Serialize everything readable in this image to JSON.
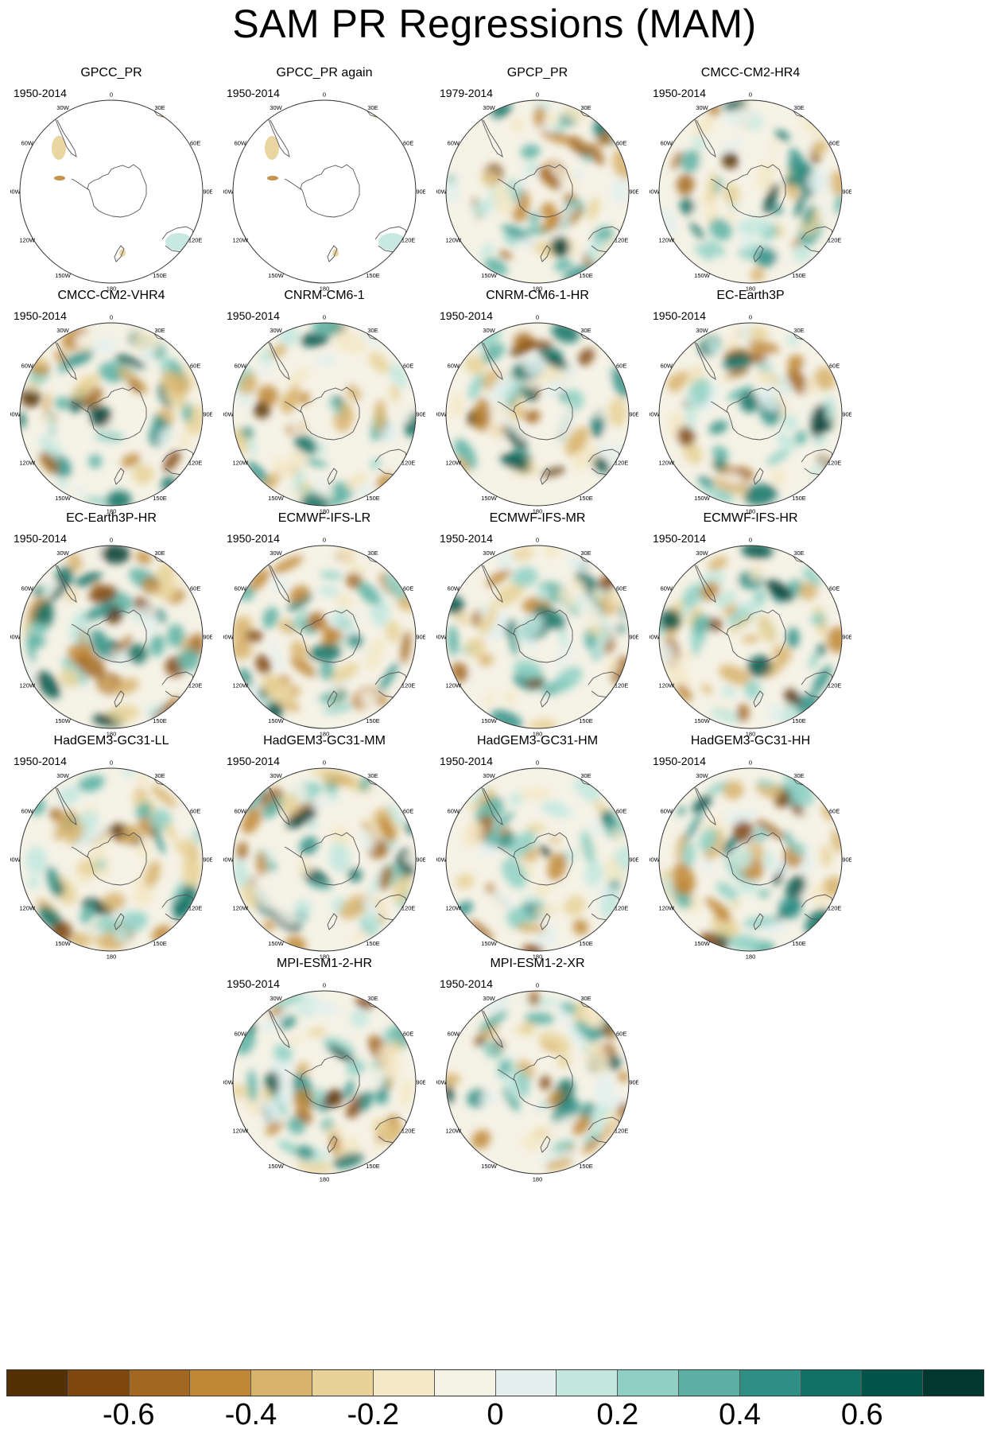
{
  "title": "SAM PR Regressions (MAM)",
  "panels": [
    {
      "name": "GPCC_PR",
      "period": "1950-2014",
      "coverage": "land"
    },
    {
      "name": "GPCC_PR again",
      "period": "1950-2014",
      "coverage": "land"
    },
    {
      "name": "GPCP_PR",
      "period": "1979-2014",
      "coverage": "full"
    },
    {
      "name": "CMCC-CM2-HR4",
      "period": "1950-2014",
      "coverage": "full"
    },
    {
      "name": "CMCC-CM2-VHR4",
      "period": "1950-2014",
      "coverage": "full"
    },
    {
      "name": "CNRM-CM6-1",
      "period": "1950-2014",
      "coverage": "full"
    },
    {
      "name": "CNRM-CM6-1-HR",
      "period": "1950-2014",
      "coverage": "full"
    },
    {
      "name": "EC-Earth3P",
      "period": "1950-2014",
      "coverage": "full"
    },
    {
      "name": "EC-Earth3P-HR",
      "period": "1950-2014",
      "coverage": "full"
    },
    {
      "name": "ECMWF-IFS-LR",
      "period": "1950-2014",
      "coverage": "full"
    },
    {
      "name": "ECMWF-IFS-MR",
      "period": "1950-2014",
      "coverage": "full"
    },
    {
      "name": "ECMWF-IFS-HR",
      "period": "1950-2014",
      "coverage": "full"
    },
    {
      "name": "HadGEM3-GC31-LL",
      "period": "1950-2014",
      "coverage": "full"
    },
    {
      "name": "HadGEM3-GC31-MM",
      "period": "1950-2014",
      "coverage": "full"
    },
    {
      "name": "HadGEM3-GC31-HM",
      "period": "1950-2014",
      "coverage": "full"
    },
    {
      "name": "HadGEM3-GC31-HH",
      "period": "1950-2014",
      "coverage": "full"
    },
    {
      "name": "MPI-ESM1-2-HR",
      "period": "1950-2014",
      "coverage": "full"
    },
    {
      "name": "MPI-ESM1-2-XR",
      "period": "1950-2014",
      "coverage": "full"
    }
  ],
  "longitude_labels": [
    "0",
    "30E",
    "60E",
    "90E",
    "120E",
    "150E",
    "180",
    "150W",
    "120W",
    "90W",
    "60W",
    "30W"
  ],
  "colorbar": {
    "colors": [
      "#543005",
      "#7f470d",
      "#a36820",
      "#c08736",
      "#d8b36c",
      "#e8d298",
      "#f5e8c6",
      "#f5f2e6",
      "#e3f0ee",
      "#c2e7df",
      "#8ed0c4",
      "#5bb0a3",
      "#2d8f86",
      "#127165",
      "#025449",
      "#00382f"
    ],
    "tick_labels": [
      "-0.6",
      "-0.4",
      "-0.2",
      "0",
      "0.2",
      "0.4",
      "0.6"
    ],
    "tick_values": [
      -0.6,
      -0.4,
      -0.2,
      0,
      0.2,
      0.4,
      0.6
    ],
    "range": [
      -0.8,
      0.8
    ]
  }
}
